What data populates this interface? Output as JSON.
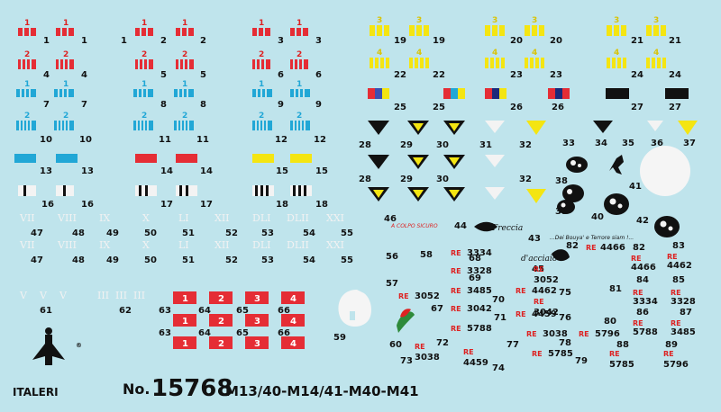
{
  "sheet": {
    "product_no_prefix": "No.",
    "product_no": "15768",
    "models": "M13/40-M14/41-M40-M41",
    "brand": "ITALERI",
    "registered_mark": "®"
  },
  "labels": [
    "1",
    "1",
    "1",
    "2",
    "2",
    "3",
    "3",
    "4",
    "4",
    "5",
    "5",
    "6",
    "6",
    "7",
    "7",
    "8",
    "8",
    "9",
    "9",
    "10",
    "10",
    "11",
    "11",
    "12",
    "12",
    "13",
    "13",
    "14",
    "14",
    "15",
    "15",
    "16",
    "16",
    "17",
    "17",
    "18",
    "18",
    "19",
    "19",
    "20",
    "20",
    "21",
    "21",
    "22",
    "22",
    "23",
    "23",
    "24",
    "24",
    "25",
    "25",
    "26",
    "26",
    "27",
    "27",
    "28",
    "29",
    "30",
    "31",
    "32",
    "33",
    "34",
    "35",
    "36",
    "37",
    "28",
    "29",
    "30",
    "32",
    "38",
    "39",
    "40",
    "41",
    "42",
    "43",
    "44",
    "45",
    "46",
    "47",
    "47",
    "48",
    "48",
    "49",
    "49",
    "50",
    "50",
    "51",
    "51",
    "52",
    "52",
    "53",
    "53",
    "54",
    "54",
    "55",
    "55",
    "56",
    "57",
    "58",
    "59",
    "60",
    "61",
    "62",
    "63",
    "63",
    "64",
    "64",
    "65",
    "65",
    "66",
    "66",
    "67",
    "68",
    "69",
    "70",
    "71",
    "72",
    "73",
    "74",
    "75",
    "76",
    "77",
    "78",
    "79",
    "80",
    "81",
    "82",
    "82",
    "83",
    "84",
    "85",
    "86",
    "87",
    "88",
    "89"
  ],
  "stripe_digits": {
    "red": [
      "1",
      "1",
      "1",
      "1",
      "1",
      "1",
      "2",
      "2",
      "2",
      "2",
      "2",
      "2"
    ],
    "blue": [
      "1",
      "1",
      "1",
      "1",
      "1",
      "1",
      "2",
      "2",
      "2",
      "2",
      "2",
      "2"
    ],
    "yellow": [
      "3",
      "3",
      "3",
      "3",
      "3",
      "3",
      "4",
      "4",
      "4",
      "4",
      "4",
      "4"
    ]
  },
  "roman_numerals": [
    "VII",
    "VIII",
    "IX",
    "X",
    "LI",
    "XII",
    "DLI",
    "DLII",
    "XXI",
    "VII",
    "VIII",
    "IX",
    "X",
    "LI",
    "XII",
    "DLI",
    "DLII",
    "XXI",
    "V",
    "V",
    "V",
    "III",
    "III",
    "III"
  ],
  "white_plate_digits": [
    "1",
    "2",
    "3",
    "4",
    "1",
    "2",
    "3",
    "4",
    "1",
    "2",
    "3",
    "4"
  ],
  "plates": [
    "3334",
    "3328",
    "3485",
    "3042",
    "5788",
    "3052",
    "4462",
    "4459",
    "3038",
    "5796",
    "5785",
    "4466",
    "4466",
    "4462",
    "3052",
    "3334",
    "3328",
    "3042",
    "5788",
    "3485",
    "3038",
    "4459",
    "5785",
    "5796"
  ],
  "plate_prefix": "RE",
  "script_texts": {
    "freccia": "Freccia",
    "acciaio": "d'acciaio",
    "a_colpo_sicuro": "A COLPO SICURO",
    "motto": "...Dei Bouya' e Terrore siam !..."
  }
}
